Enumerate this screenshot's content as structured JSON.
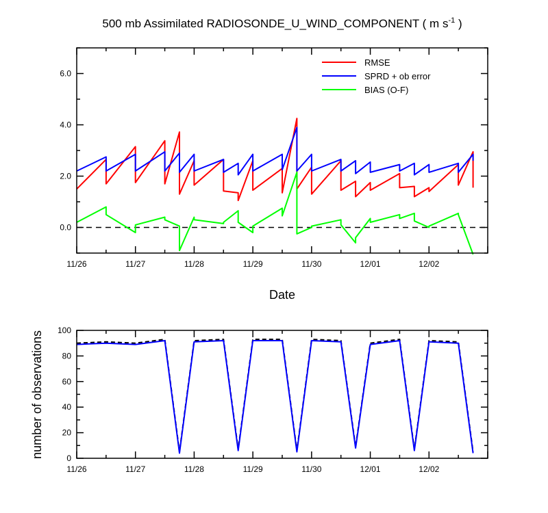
{
  "chart_data": [
    {
      "type": "line",
      "title_main": "500 mb Assimilated RADIOSONDE_U_WIND_COMPONENT ( m s",
      "title_sup": "-1",
      "title_end": " )",
      "xlabel": "Date",
      "ylabel": "",
      "xlim": [
        0,
        7
      ],
      "ylim": [
        -1,
        7
      ],
      "x_tick_labels": [
        "11/26",
        "11/27",
        "11/28",
        "11/29",
        "11/30",
        "12/01",
        "12/02"
      ],
      "y_tick_labels": [
        "0.0",
        "2.0",
        "4.0",
        "6.0"
      ],
      "y_tick_values": [
        0,
        2,
        4,
        6
      ],
      "legend_position": "top-right",
      "zero_line": "dashed",
      "series": [
        {
          "name": "RMSE",
          "color": "#ff0000",
          "x": [
            0,
            0.5,
            0.5,
            1.0,
            1.0,
            1.5,
            1.5,
            1.75,
            1.75,
            2.0,
            2.0,
            2.5,
            2.5,
            2.75,
            2.75,
            3.0,
            3.0,
            3.5,
            3.5,
            3.75,
            3.75,
            4.0,
            4.0,
            4.5,
            4.5,
            4.75,
            4.75,
            5.0,
            5.0,
            5.5,
            5.5,
            5.75,
            5.75,
            6.0,
            6.0,
            6.5,
            6.5,
            6.75,
            6.75
          ],
          "y": [
            1.5,
            2.65,
            1.7,
            3.15,
            1.75,
            3.38,
            1.7,
            3.72,
            1.3,
            2.6,
            1.65,
            2.65,
            1.42,
            1.35,
            1.05,
            2.6,
            1.45,
            2.3,
            1.35,
            4.25,
            1.5,
            2.35,
            1.3,
            2.6,
            1.45,
            1.8,
            1.2,
            1.75,
            1.45,
            2.1,
            1.55,
            1.6,
            1.2,
            1.55,
            1.4,
            2.45,
            1.65,
            2.95,
            1.55
          ]
        },
        {
          "name": "SPRD + ob error",
          "color": "#0000ff",
          "x": [
            0,
            0.5,
            0.5,
            1.0,
            1.0,
            1.5,
            1.5,
            1.75,
            1.75,
            2.0,
            2.0,
            2.5,
            2.5,
            2.75,
            2.75,
            3.0,
            3.0,
            3.5,
            3.5,
            3.75,
            3.75,
            4.0,
            4.0,
            4.5,
            4.5,
            4.75,
            4.75,
            5.0,
            5.0,
            5.5,
            5.5,
            5.75,
            5.75,
            6.0,
            6.0,
            6.5,
            6.5,
            6.75,
            6.75
          ],
          "y": [
            2.2,
            2.75,
            2.2,
            2.85,
            2.2,
            2.95,
            2.2,
            2.9,
            2.15,
            2.85,
            2.2,
            2.65,
            2.15,
            2.5,
            2.05,
            2.85,
            2.2,
            2.85,
            2.25,
            3.9,
            2.2,
            2.85,
            2.2,
            2.65,
            2.2,
            2.6,
            2.1,
            2.55,
            2.15,
            2.45,
            2.2,
            2.5,
            2.05,
            2.45,
            2.15,
            2.5,
            2.15,
            2.85,
            2.6
          ]
        },
        {
          "name": "BIAS (O-F)",
          "color": "#00ff00",
          "x": [
            0,
            0.5,
            0.5,
            1.0,
            1.0,
            1.5,
            1.5,
            1.75,
            1.75,
            2.0,
            2.0,
            2.5,
            2.5,
            2.75,
            2.75,
            3.0,
            3.0,
            3.5,
            3.5,
            3.75,
            3.75,
            4.0,
            4.0,
            4.5,
            4.5,
            4.75,
            4.75,
            5.0,
            5.0,
            5.5,
            5.5,
            5.75,
            5.75,
            6.0,
            6.0,
            6.5,
            6.5,
            6.75
          ],
          "y": [
            0.2,
            0.8,
            0.5,
            -0.2,
            0.1,
            0.4,
            0.3,
            0.05,
            -0.9,
            0.4,
            0.3,
            0.15,
            0.2,
            0.65,
            0.2,
            -0.2,
            0.05,
            0.75,
            0.45,
            2.15,
            -0.25,
            0.0,
            0.05,
            0.3,
            0.1,
            -0.6,
            -0.4,
            0.35,
            0.2,
            0.5,
            0.35,
            0.55,
            0.25,
            0.0,
            0.05,
            0.55,
            0.5,
            -1.05
          ]
        }
      ]
    },
    {
      "type": "line",
      "title": "",
      "xlabel": "",
      "ylabel": "number of observations",
      "xlim": [
        0,
        7
      ],
      "ylim": [
        0,
        100
      ],
      "x_tick_labels": [
        "11/26",
        "11/27",
        "11/28",
        "11/29",
        "11/30",
        "12/01",
        "12/02"
      ],
      "y_tick_labels": [
        "0",
        "20",
        "40",
        "60",
        "80",
        "100"
      ],
      "y_tick_values": [
        0,
        20,
        40,
        60,
        80,
        100
      ],
      "series": [
        {
          "style": "dashed",
          "color": "#000000",
          "x": [
            0,
            0.5,
            1.0,
            1.5,
            1.75,
            2.0,
            2.5,
            2.75,
            3.0,
            3.5,
            3.75,
            4.0,
            4.5,
            4.75,
            5.0,
            5.5,
            5.75,
            6.0,
            6.5,
            6.75
          ],
          "y": [
            90,
            91,
            90,
            93,
            5,
            92,
            93,
            7,
            93,
            93,
            6,
            93,
            92,
            9,
            90,
            93,
            7,
            92,
            91,
            5
          ]
        },
        {
          "style": "solid",
          "color": "#0000ff",
          "x": [
            0,
            0.5,
            1.0,
            1.5,
            1.75,
            2.0,
            2.5,
            2.75,
            3.0,
            3.5,
            3.75,
            4.0,
            4.5,
            4.75,
            5.0,
            5.5,
            5.75,
            6.0,
            6.5,
            6.75
          ],
          "y": [
            89,
            90,
            89,
            92,
            4,
            91,
            92,
            6,
            92,
            92,
            5,
            92,
            91,
            8,
            89,
            92,
            6,
            91,
            90,
            4
          ]
        }
      ]
    }
  ]
}
